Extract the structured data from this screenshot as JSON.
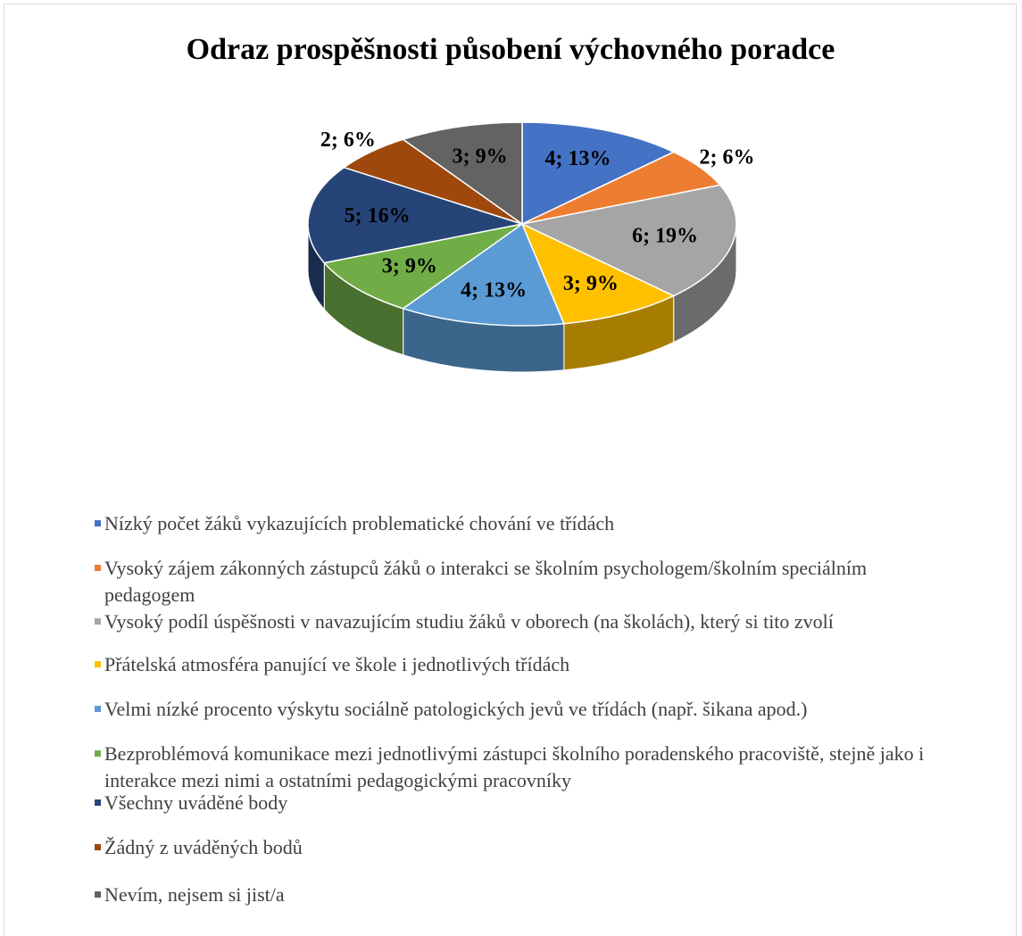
{
  "chart_data": {
    "type": "pie3d",
    "title": "Odraz prospěšnosti působení výchovného poradce",
    "categories": [
      "Nízký počet žáků vykazujících problematické chování ve třídách",
      "Vysoký zájem zákonných zástupců žáků o interakci se školním psychologem/školním speciálním pedagogem",
      "Vysoký podíl úspěšnosti v navazujícím studiu žáků v oborech (na školách), který si tito zvolí",
      "Přátelská atmosféra panující ve škole i jednotlivých třídách",
      "Velmi nízké procento výskytu sociálně patologických jevů ve třídách (např. šikana apod.)",
      "Bezproblémová komunikace mezi jednotlivými zástupci školního poradenského pracoviště, stejně jako i interakce mezi nimi a ostatními pedagogickými pracovníky",
      "Všechny uváděné body",
      "Žádný z uváděných bodů",
      "Nevím, nejsem si jist/a"
    ],
    "values": [
      4,
      2,
      6,
      3,
      4,
      3,
      5,
      2,
      3
    ],
    "value_labels": [
      "4; 13%",
      "2; 6%",
      "6; 19%",
      "3; 9%",
      "4; 13%",
      "3; 9%",
      "5; 16%",
      "2; 6%",
      "3; 9%"
    ],
    "colors": [
      "#4472c4",
      "#ed7d31",
      "#a5a5a5",
      "#ffc000",
      "#5b9bd5",
      "#70ad47",
      "#264478",
      "#9e480e",
      "#636363"
    ],
    "legend": "bottom"
  }
}
